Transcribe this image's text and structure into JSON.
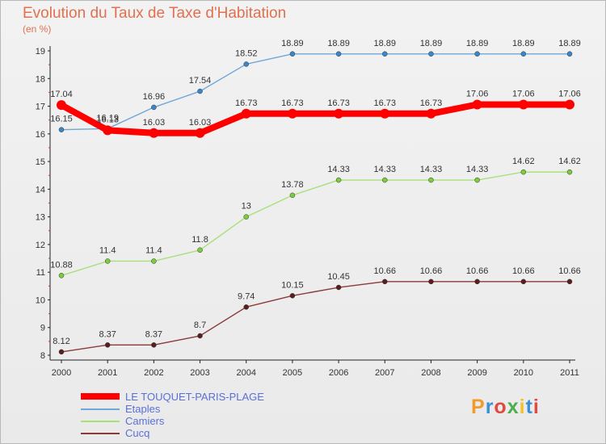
{
  "title": "Evolution du Taux de Taxe d'Habitation",
  "unit_label": "(en %)",
  "logo": {
    "text": "Proxiti",
    "colors": [
      "#f29a2e",
      "#3b8fd6",
      "#e04a3f",
      "#4cae4c",
      "#f2c12e",
      "#3b8fd6",
      "#e04a3f"
    ]
  },
  "chart_data": {
    "type": "line",
    "x": [
      "2000",
      "2001",
      "2002",
      "2003",
      "2004",
      "2005",
      "2006",
      "2007",
      "2008",
      "2009",
      "2010",
      "2011"
    ],
    "ylim": [
      8,
      19
    ],
    "yticks": [
      "8",
      "9",
      "10",
      "11",
      "12",
      "13",
      "14",
      "15",
      "16",
      "17",
      "18",
      "19"
    ],
    "grid": false,
    "legend_position": "bottom-left",
    "series": [
      {
        "name": "LE TOUQUET-PARIS-PLAGE",
        "color": "#ff0000",
        "thick": true,
        "values": [
          17.04,
          16.13,
          16.03,
          16.03,
          16.73,
          16.73,
          16.73,
          16.73,
          16.73,
          17.06,
          17.06,
          17.06
        ],
        "labels": [
          "17.04",
          "16.13",
          "16.03",
          "16.03",
          "16.73",
          "16.73",
          "16.73",
          "16.73",
          "16.73",
          "17.06",
          "17.06",
          "17.06"
        ]
      },
      {
        "name": "Etaples",
        "color": "#6fa7d8",
        "point_color": "#3a86c8",
        "thick": false,
        "values": [
          16.15,
          16.19,
          16.96,
          17.54,
          18.52,
          18.89,
          18.89,
          18.89,
          18.89,
          18.89,
          18.89,
          18.89
        ],
        "labels": [
          "16.15",
          "16.19",
          "16.96",
          "17.54",
          "18.52",
          "18.89",
          "18.89",
          "18.89",
          "18.89",
          "18.89",
          "18.89",
          "18.89"
        ]
      },
      {
        "name": "Camiers",
        "color": "#a8e07a",
        "point_color": "#7ccc3c",
        "thick": false,
        "values": [
          10.88,
          11.4,
          11.4,
          11.8,
          13,
          13.78,
          14.33,
          14.33,
          14.33,
          14.33,
          14.62,
          14.62
        ],
        "labels": [
          "10.88",
          "11.4",
          "11.4",
          "11.8",
          "13",
          "13.78",
          "14.33",
          "14.33",
          "14.33",
          "14.33",
          "14.62",
          "14.62"
        ]
      },
      {
        "name": "Cucq",
        "color": "#8b3a3a",
        "point_color": "#5a1e1e",
        "thick": false,
        "values": [
          8.12,
          8.37,
          8.37,
          8.7,
          9.74,
          10.15,
          10.45,
          10.66,
          10.66,
          10.66,
          10.66,
          10.66
        ],
        "labels": [
          "8.12",
          "8.37",
          "8.37",
          "8.7",
          "9.74",
          "10.15",
          "10.45",
          "10.66",
          "10.66",
          "10.66",
          "10.66",
          "10.66"
        ]
      }
    ]
  }
}
